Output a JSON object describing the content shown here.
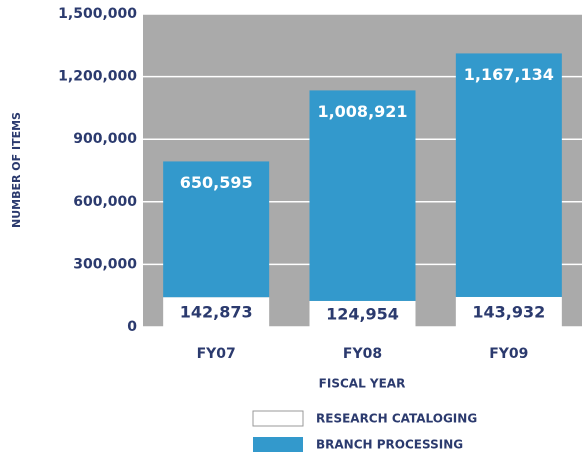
{
  "chart_data": {
    "type": "stacked_bar",
    "categories": [
      "FY07",
      "FY08",
      "FY09"
    ],
    "series": [
      {
        "name": "RESEARCH CATALOGING",
        "color": "#ffffff",
        "values": [
          142873,
          124954,
          143932
        ],
        "value_labels": [
          "142,873",
          "124,954",
          "143,932"
        ]
      },
      {
        "name": "BRANCH PROCESSING",
        "color": "#3399cc",
        "values": [
          650595,
          1008921,
          1167134
        ],
        "value_labels": [
          "650,595",
          "1,008,921",
          "1,167,134"
        ]
      }
    ],
    "ylim": [
      0,
      1500000
    ],
    "yticks": [
      0,
      {
        "value": 300000,
        "label": "300,000"
      },
      {
        "value": 600000,
        "label": "600,000"
      },
      {
        "value": 900000,
        "label": "900,000"
      },
      {
        "value": 1200000,
        "label": "1,200,000"
      },
      {
        "value": 1500000,
        "label": "1,500,000"
      }
    ],
    "grid": true,
    "xlabel": "FISCAL YEAR",
    "ylabel": "NUMBER OF ITEMS"
  }
}
